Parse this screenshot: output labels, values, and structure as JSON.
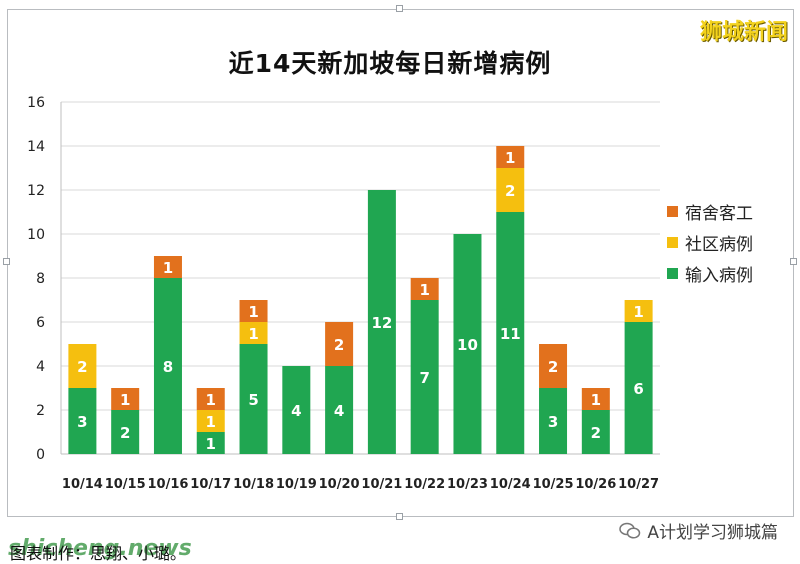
{
  "brand": "狮城新闻",
  "footer": {
    "credit": "图表制作：思翔、小璐。",
    "watermark": "shicheng.news",
    "account": "A计划学习狮城篇"
  },
  "colors": {
    "imported": "#20a651",
    "community": "#f5bf0f",
    "dorm": "#e2711d"
  },
  "chart_data": {
    "type": "bar",
    "stacked": true,
    "title": "近14天新加坡每日新增病例",
    "categories": [
      "10/14",
      "10/15",
      "10/16",
      "10/17",
      "10/18",
      "10/19",
      "10/20",
      "10/21",
      "10/22",
      "10/23",
      "10/24",
      "10/25",
      "10/26",
      "10/27"
    ],
    "series": [
      {
        "name": "输入病例",
        "key": "imported",
        "values": [
          3,
          2,
          8,
          1,
          5,
          4,
          4,
          12,
          7,
          10,
          11,
          3,
          2,
          6
        ]
      },
      {
        "name": "社区病例",
        "key": "community",
        "values": [
          2,
          0,
          0,
          1,
          1,
          0,
          0,
          0,
          0,
          0,
          2,
          0,
          0,
          1
        ]
      },
      {
        "name": "宿舍客工",
        "key": "dorm",
        "values": [
          0,
          1,
          1,
          1,
          1,
          0,
          2,
          0,
          1,
          0,
          1,
          2,
          1,
          0
        ]
      }
    ],
    "legend_order": [
      "宿舍客工",
      "社区病例",
      "输入病例"
    ],
    "ylim": [
      0,
      16
    ],
    "yticks": [
      0,
      2,
      4,
      6,
      8,
      10,
      12,
      14,
      16
    ],
    "legend_position": "right",
    "data_labels": true
  }
}
